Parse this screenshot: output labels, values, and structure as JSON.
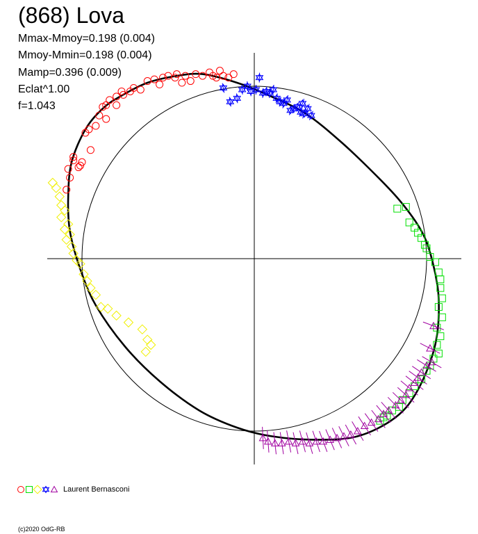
{
  "title": "(868) Lova",
  "stats": [
    "Mmax-Mmoy=0.198 (0.004)",
    "Mmoy-Mmin=0.198 (0.004)",
    "Mamp=0.396 (0.009)",
    "Eclat^1.00",
    "f=1.043"
  ],
  "legend": {
    "observer": "Laurent Bernasconi",
    "markers": [
      {
        "name": "circle-marker",
        "color": "#ff0000"
      },
      {
        "name": "square-marker",
        "color": "#00e000"
      },
      {
        "name": "diamond-marker",
        "color": "#f0f000"
      },
      {
        "name": "star-marker",
        "color": "#0000ff"
      },
      {
        "name": "triangle-marker",
        "color": "#a000a0"
      }
    ]
  },
  "copyright": "(c)2020 OdG-RB",
  "chart_data": {
    "type": "scatter",
    "coordinates": "polar",
    "reference_circle_radius": 1.0,
    "model_curve": [
      [
        -0.78,
        0.94
      ],
      [
        -0.62,
        1.02
      ],
      [
        -0.45,
        1.06
      ],
      [
        -0.3,
        1.07
      ],
      [
        -0.1,
        1.02
      ],
      [
        0.1,
        0.94
      ],
      [
        0.3,
        0.84
      ],
      [
        0.5,
        0.68
      ],
      [
        0.7,
        0.49
      ],
      [
        0.85,
        0.33
      ],
      [
        0.97,
        0.16
      ],
      [
        1.03,
        0.0
      ],
      [
        1.07,
        -0.23
      ],
      [
        1.05,
        -0.5
      ],
      [
        0.95,
        -0.76
      ],
      [
        0.82,
        -0.92
      ],
      [
        0.6,
        -1.03
      ],
      [
        0.35,
        -1.05
      ],
      [
        0.1,
        -1.03
      ],
      [
        -0.1,
        -0.98
      ],
      [
        -0.32,
        -0.88
      ],
      [
        -0.55,
        -0.71
      ],
      [
        -0.75,
        -0.51
      ],
      [
        -0.92,
        -0.27
      ],
      [
        -1.01,
        -0.06
      ],
      [
        -1.07,
        0.16
      ],
      [
        -1.08,
        0.36
      ],
      [
        -1.06,
        0.56
      ],
      [
        -0.98,
        0.75
      ],
      [
        -0.88,
        0.87
      ]
    ],
    "series": [
      {
        "marker": "circle",
        "color": "#ff0000",
        "points": [
          [
            -1.05,
            0.57
          ],
          [
            -1.08,
            0.52
          ],
          [
            -1.07,
            0.47
          ],
          [
            -1.05,
            0.59
          ],
          [
            -1.09,
            0.4
          ],
          [
            -1.02,
            0.53
          ],
          [
            -1.0,
            0.56
          ],
          [
            -1.01,
            0.54
          ],
          [
            -0.95,
            0.63
          ],
          [
            -0.96,
            0.75
          ],
          [
            -0.98,
            0.73
          ],
          [
            -0.9,
            0.83
          ],
          [
            -0.92,
            0.77
          ],
          [
            -0.88,
            0.88
          ],
          [
            -0.86,
            0.89
          ],
          [
            -0.84,
            0.92
          ],
          [
            -0.8,
            0.94
          ],
          [
            -0.76,
            0.95
          ],
          [
            -0.77,
            0.97
          ],
          [
            -0.72,
            0.97
          ],
          [
            -0.7,
            0.99
          ],
          [
            -0.66,
            0.98
          ],
          [
            -0.62,
            1.03
          ],
          [
            -0.58,
            1.04
          ],
          [
            -0.55,
            1.01
          ],
          [
            -0.53,
            1.05
          ],
          [
            -0.5,
            1.06
          ],
          [
            -0.46,
            1.05
          ],
          [
            -0.45,
            1.07
          ],
          [
            -0.42,
            1.02
          ],
          [
            -0.4,
            1.06
          ],
          [
            -0.37,
            1.03
          ],
          [
            -0.34,
            1.07
          ],
          [
            -0.3,
            1.06
          ],
          [
            -0.26,
            1.08
          ],
          [
            -0.24,
            1.06
          ],
          [
            -0.22,
            1.05
          ],
          [
            -0.2,
            1.09
          ],
          [
            -0.18,
            1.06
          ],
          [
            -0.15,
            1.05
          ],
          [
            -0.12,
            1.07
          ],
          [
            -0.86,
            0.81
          ],
          [
            -0.8,
            0.89
          ]
        ]
      },
      {
        "marker": "star",
        "color": "#0000ff",
        "points": [
          [
            -0.18,
            0.99
          ],
          [
            -0.14,
            0.91
          ],
          [
            -0.1,
            0.93
          ],
          [
            -0.07,
            0.98
          ],
          [
            -0.04,
            1.0
          ],
          [
            -0.02,
            0.97
          ],
          [
            0.01,
            0.98
          ],
          [
            0.03,
            1.05
          ],
          [
            0.05,
            0.96
          ],
          [
            0.07,
            0.97
          ],
          [
            0.09,
            0.96
          ],
          [
            0.11,
            0.98
          ],
          [
            0.13,
            0.93
          ],
          [
            0.15,
            0.91
          ],
          [
            0.17,
            0.9
          ],
          [
            0.19,
            0.92
          ],
          [
            0.21,
            0.86
          ],
          [
            0.23,
            0.87
          ],
          [
            0.25,
            0.88
          ],
          [
            0.27,
            0.85
          ],
          [
            0.29,
            0.84
          ],
          [
            0.31,
            0.87
          ],
          [
            0.33,
            0.83
          ],
          [
            0.28,
            0.9
          ]
        ]
      },
      {
        "marker": "square",
        "color": "#00e000",
        "points": [
          [
            0.83,
            0.29
          ],
          [
            0.88,
            0.3
          ],
          [
            0.9,
            0.21
          ],
          [
            0.93,
            0.18
          ],
          [
            0.95,
            0.15
          ],
          [
            0.97,
            0.12
          ],
          [
            0.99,
            0.08
          ],
          [
            1.0,
            0.06
          ],
          [
            1.02,
            0.01
          ],
          [
            1.05,
            -0.02
          ],
          [
            1.07,
            -0.08
          ],
          [
            1.08,
            -0.12
          ],
          [
            1.08,
            -0.17
          ],
          [
            1.09,
            -0.23
          ],
          [
            1.07,
            -0.28
          ],
          [
            1.09,
            -0.34
          ],
          [
            1.06,
            -0.4
          ],
          [
            1.08,
            -0.45
          ],
          [
            1.06,
            -0.5
          ],
          [
            1.07,
            -0.55
          ],
          [
            1.04,
            -0.58
          ],
          [
            1.02,
            -0.62
          ],
          [
            1.0,
            -0.65
          ],
          [
            0.97,
            -0.7
          ],
          [
            0.93,
            -0.74
          ],
          [
            0.9,
            -0.78
          ],
          [
            0.86,
            -0.82
          ],
          [
            0.84,
            -0.86
          ],
          [
            0.8,
            -0.88
          ],
          [
            0.77,
            -0.91
          ],
          [
            0.75,
            -0.92
          ],
          [
            0.73,
            -0.94
          ]
        ]
      },
      {
        "marker": "triangle",
        "color": "#a000a0",
        "points": [
          [
            1.04,
            -0.39
          ],
          [
            1.02,
            -0.52
          ],
          [
            1.03,
            -0.6
          ],
          [
            1.0,
            -0.62
          ],
          [
            0.97,
            -0.66
          ],
          [
            0.95,
            -0.69
          ],
          [
            0.93,
            -0.72
          ],
          [
            0.9,
            -0.75
          ],
          [
            0.88,
            -0.79
          ],
          [
            0.85,
            -0.82
          ],
          [
            0.82,
            -0.85
          ],
          [
            0.78,
            -0.88
          ],
          [
            0.75,
            -0.9
          ],
          [
            0.72,
            -0.93
          ],
          [
            0.68,
            -0.95
          ],
          [
            0.64,
            -0.97
          ],
          [
            0.6,
            -1.0
          ],
          [
            0.56,
            -1.02
          ],
          [
            0.52,
            -1.03
          ],
          [
            0.48,
            -1.04
          ],
          [
            0.44,
            -1.05
          ],
          [
            0.4,
            -1.06
          ],
          [
            0.36,
            -1.06
          ],
          [
            0.32,
            -1.07
          ],
          [
            0.28,
            -1.06
          ],
          [
            0.24,
            -1.07
          ],
          [
            0.2,
            -1.06
          ],
          [
            0.16,
            -1.07
          ],
          [
            0.12,
            -1.07
          ],
          [
            0.08,
            -1.06
          ],
          [
            0.05,
            -1.04
          ]
        ]
      },
      {
        "marker": "diamond",
        "color": "#f0f000",
        "points": [
          [
            -1.17,
            0.44
          ],
          [
            -1.15,
            0.41
          ],
          [
            -1.13,
            0.36
          ],
          [
            -1.12,
            0.31
          ],
          [
            -1.1,
            0.28
          ],
          [
            -1.12,
            0.24
          ],
          [
            -1.08,
            0.2
          ],
          [
            -1.1,
            0.17
          ],
          [
            -1.07,
            0.14
          ],
          [
            -1.09,
            0.11
          ],
          [
            -1.06,
            0.07
          ],
          [
            -1.05,
            0.03
          ],
          [
            -1.03,
            -0.01
          ],
          [
            -1.01,
            -0.03
          ],
          [
            -0.99,
            -0.09
          ],
          [
            -0.97,
            -0.13
          ],
          [
            -0.95,
            -0.17
          ],
          [
            -0.92,
            -0.21
          ],
          [
            -0.89,
            -0.28
          ],
          [
            -0.85,
            -0.29
          ],
          [
            -0.8,
            -0.33
          ],
          [
            -0.73,
            -0.37
          ],
          [
            -0.65,
            -0.41
          ],
          [
            -0.62,
            -0.47
          ],
          [
            -0.6,
            -0.5
          ],
          [
            -0.63,
            -0.54
          ]
        ]
      }
    ]
  }
}
